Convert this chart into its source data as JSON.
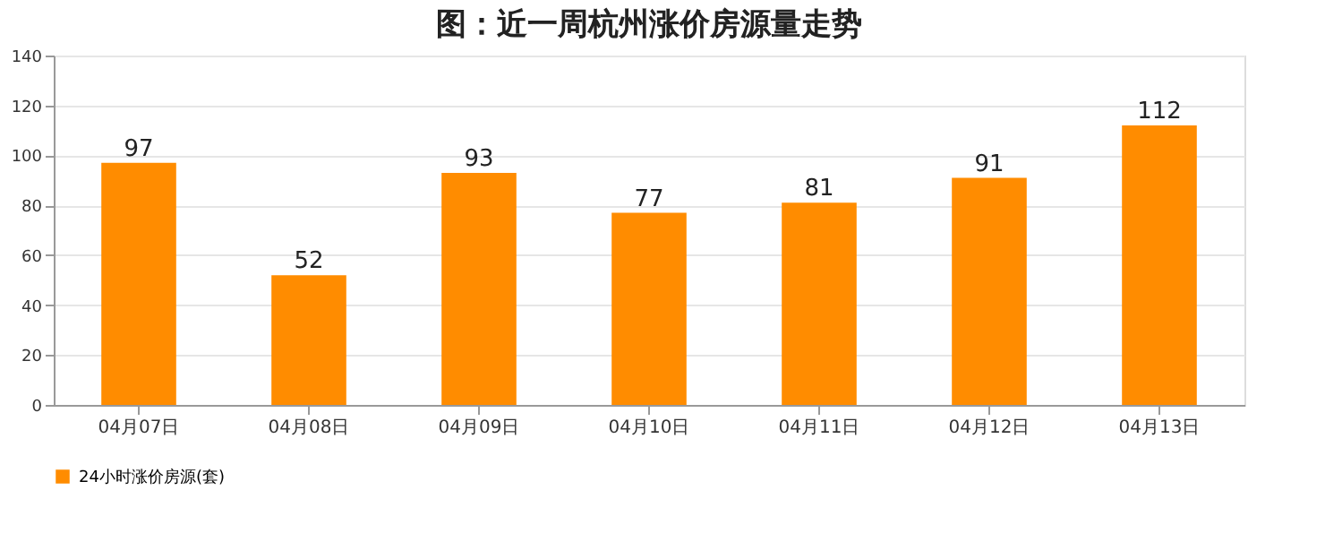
{
  "chart_data": {
    "type": "bar",
    "title": "图：近一周杭州涨价房源量走势",
    "categories": [
      "04月07日",
      "04月08日",
      "04月09日",
      "04月10日",
      "04月11日",
      "04月12日",
      "04月13日"
    ],
    "series": [
      {
        "name": "24小时涨价房源(套)",
        "color": "#ff8c00",
        "values": [
          97,
          52,
          93,
          77,
          81,
          91,
          112
        ]
      }
    ],
    "ylim": [
      0,
      140
    ],
    "yticks": [
      0,
      20,
      40,
      60,
      80,
      100,
      120,
      140
    ],
    "grid": "y",
    "legend": "bottom",
    "data_labels": true
  }
}
